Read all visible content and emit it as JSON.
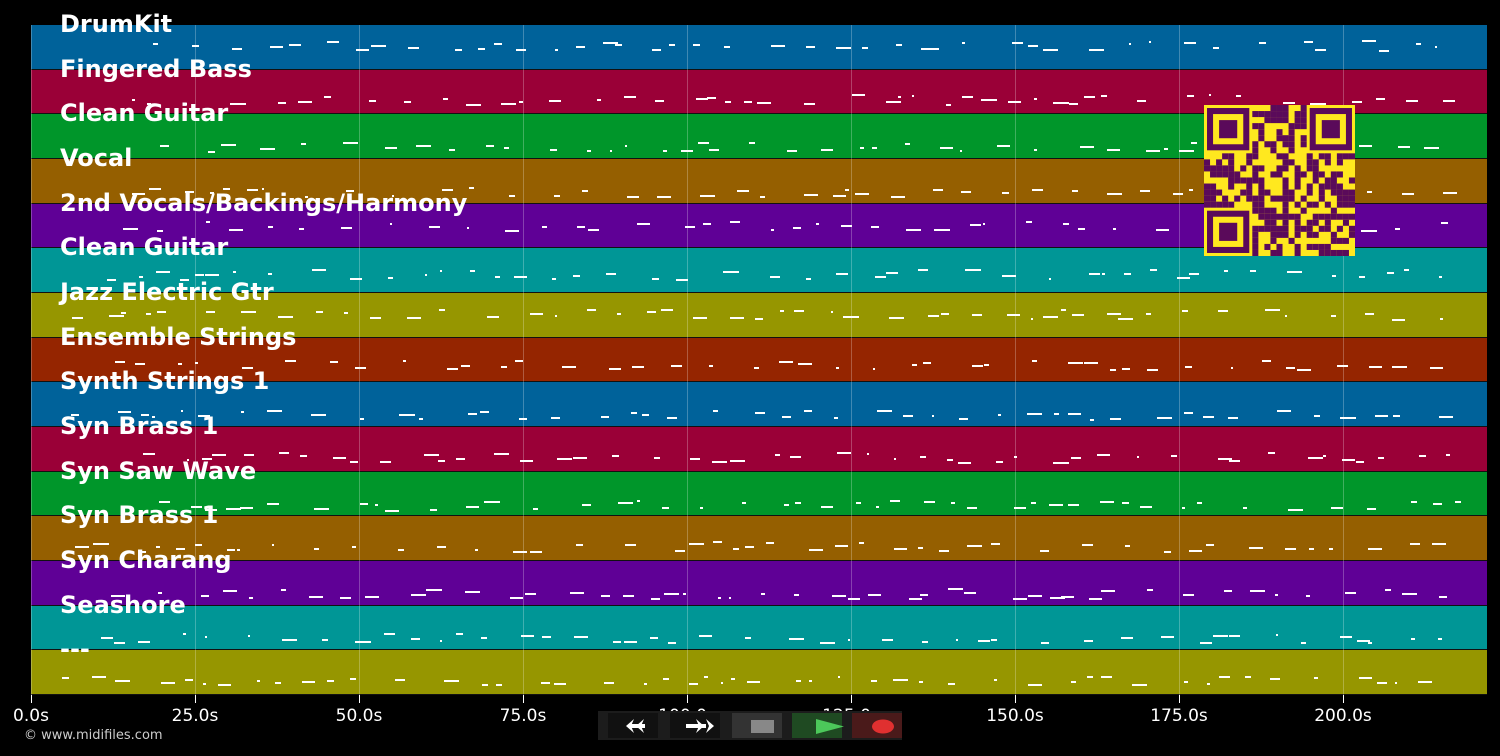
{
  "tracks": [
    {
      "name": "DrumKit",
      "color": "#00629a"
    },
    {
      "name": "Fingered Bass",
      "color": "#9a0037"
    },
    {
      "name": "Clean Guitar",
      "color": "#00962a"
    },
    {
      "name": "Vocal",
      "color": "#955f00"
    },
    {
      "name": "2nd Vocals/Backings/Harmony",
      "color": "#5f0096"
    },
    {
      "name": "Clean Guitar",
      "color": "#009696"
    },
    {
      "name": "Jazz Electric Gtr",
      "color": "#969600"
    },
    {
      "name": "Ensemble Strings",
      "color": "#952500"
    },
    {
      "name": "Synth Strings 1",
      "color": "#00629a"
    },
    {
      "name": "Syn Brass 1",
      "color": "#9a0037"
    },
    {
      "name": "Syn Saw Wave",
      "color": "#00962a"
    },
    {
      "name": "Syn Brass 1",
      "color": "#955f00"
    },
    {
      "name": "Syn Charang",
      "color": "#5f0096"
    },
    {
      "name": "Seashore",
      "color": "#009696"
    },
    {
      "name": "---",
      "color": "#969600"
    }
  ],
  "axis": {
    "ticks": [
      "0.0s",
      "25.0s",
      "50.0s",
      "75.0s",
      "100.0s",
      "125.0s",
      "150.0s",
      "175.0s",
      "200.0s"
    ],
    "seconds_per_tick": 25,
    "max_seconds": 221.8
  },
  "footer": {
    "copyright": "© www.midifiles.com"
  },
  "controls": {
    "rewind_icon": "rewind-icon",
    "forward_icon": "fast-forward-icon",
    "stop_icon": "stop-icon",
    "play_icon": "play-icon",
    "record_icon": "record-icon"
  }
}
